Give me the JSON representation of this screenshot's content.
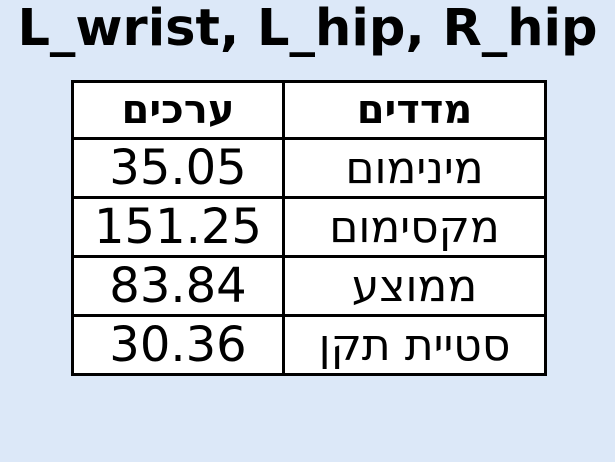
{
  "colors": {
    "background": "#dce8f8",
    "table_background": "#ffffff",
    "text": "#000000",
    "border": "#000000"
  },
  "chart_data": {
    "type": "table",
    "title": "L_wrist, L_hip, R_hip",
    "columns": [
      "ערכים",
      "מדדים"
    ],
    "rows": [
      {
        "value": "35.05",
        "measure": "מינימום"
      },
      {
        "value": "151.25",
        "measure": "מקסימום"
      },
      {
        "value": "83.84",
        "measure": "ממוצע"
      },
      {
        "value": "30.36",
        "measure": "סטיית תקן"
      }
    ]
  }
}
